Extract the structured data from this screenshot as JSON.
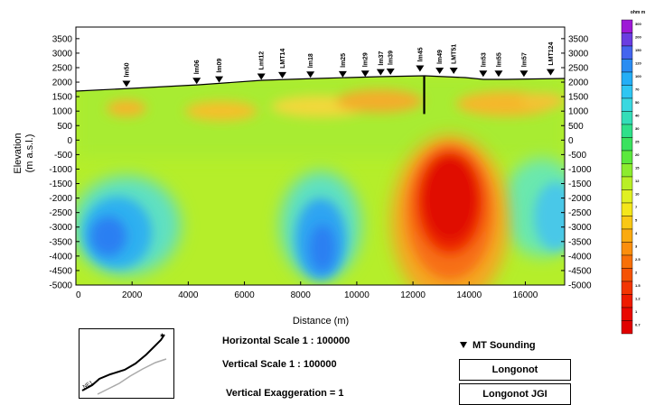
{
  "chart_data": {
    "type": "heatmap",
    "title": "",
    "xlabel": "Distance (m)",
    "ylabel_line1": "Elevation",
    "ylabel_line2": "(m a.s.l.)",
    "xlim": [
      0,
      17400
    ],
    "ylim": [
      -5000,
      3900
    ],
    "x_ticks": [
      "0",
      "2000",
      "4000",
      "6000",
      "8000",
      "10000",
      "12000",
      "14000",
      "16000"
    ],
    "x_tick_values": [
      0,
      2000,
      4000,
      6000,
      8000,
      10000,
      12000,
      14000,
      16000
    ],
    "y_ticks": [
      "3500",
      "3000",
      "2500",
      "2000",
      "1500",
      "1000",
      "500",
      "0",
      "-500",
      "-1000",
      "-1500",
      "-2000",
      "-2500",
      "-3000",
      "-3500",
      "-4000",
      "-4500",
      "-5000"
    ],
    "y_tick_values": [
      3500,
      3000,
      2500,
      2000,
      1500,
      1000,
      500,
      0,
      -500,
      -1000,
      -1500,
      -2000,
      -2500,
      -3000,
      -3500,
      -4000,
      -4500,
      -5000
    ],
    "stations": [
      {
        "name": "lm50",
        "x": 1800,
        "elev": 1800
      },
      {
        "name": "lm06",
        "x": 4300,
        "elev": 1900
      },
      {
        "name": "lm09",
        "x": 5100,
        "elev": 1950
      },
      {
        "name": "Lmt12",
        "x": 6600,
        "elev": 2050
      },
      {
        "name": "LMT14",
        "x": 7350,
        "elev": 2100
      },
      {
        "name": "lm18",
        "x": 8350,
        "elev": 2120
      },
      {
        "name": "lm25",
        "x": 9500,
        "elev": 2130
      },
      {
        "name": "lm29",
        "x": 10300,
        "elev": 2150
      },
      {
        "name": "lm37",
        "x": 10850,
        "elev": 2200
      },
      {
        "name": "lm39",
        "x": 11200,
        "elev": 2220
      },
      {
        "name": "lm45",
        "x": 12250,
        "elev": 2330
      },
      {
        "name": "lm49",
        "x": 12950,
        "elev": 2250
      },
      {
        "name": "LMT51",
        "x": 13450,
        "elev": 2250
      },
      {
        "name": "lm53",
        "x": 14500,
        "elev": 2150
      },
      {
        "name": "lm55",
        "x": 15050,
        "elev": 2150
      },
      {
        "name": "lm57",
        "x": 15950,
        "elev": 2150
      },
      {
        "name": "LMT124",
        "x": 16900,
        "elev": 2200
      }
    ],
    "borehole": {
      "x": 12400,
      "from": 2200,
      "to": 900
    },
    "colorbar": {
      "unit": "ohm m",
      "labels": [
        "300",
        "200",
        "150",
        "120",
        "100",
        "70",
        "50",
        "40",
        "30",
        "25",
        "20",
        "15",
        "12",
        "10",
        "7",
        "5",
        "4",
        "3",
        "2.5",
        "2",
        "1.5",
        "1.2",
        "1",
        "0.7"
      ],
      "colors": [
        "#9d19d6",
        "#6a3de0",
        "#4465ee",
        "#2a8cf2",
        "#25aef6",
        "#2fc6f2",
        "#3ad8e0",
        "#34ddb8",
        "#2fe08a",
        "#3ae25e",
        "#5be83c",
        "#8cec2e",
        "#b9ef26",
        "#e0f022",
        "#f4e61a",
        "#f9c814",
        "#fbaa10",
        "#fb8e0c",
        "#f87008",
        "#f55204",
        "#f23502",
        "#ee1b00",
        "#e80800",
        "#e00000"
      ]
    },
    "legend_marker_label": "MT Sounding"
  },
  "info": {
    "horizontal_scale": "Horizontal Scale 1 :  100000",
    "vertical_scale": "Vertical Scale      1 :  100000",
    "vertical_exaggeration": "Vertical Exaggeration = 1"
  },
  "boxes": [
    "Longonot",
    "Longonot JGI"
  ],
  "map": {
    "label": "NE1"
  }
}
